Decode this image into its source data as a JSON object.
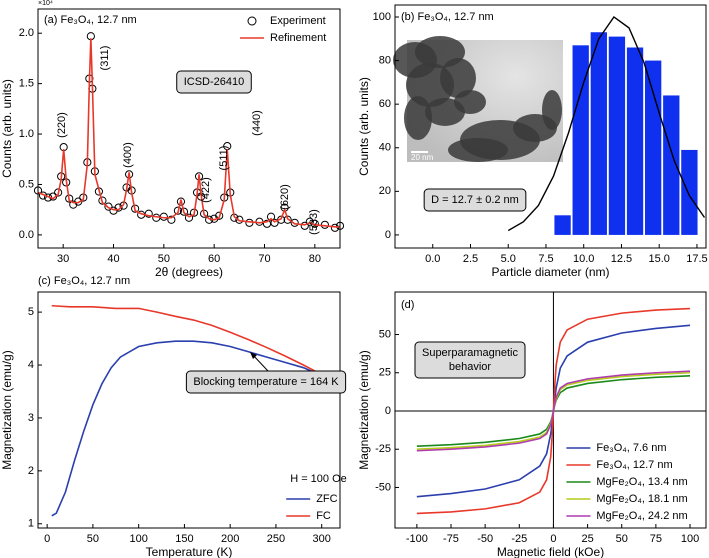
{
  "chart_data": [
    {
      "type": "scatter",
      "title": "(a) Fe₃O₄, 12.7 nm",
      "offset_label": "×10⁴",
      "x_label": "2θ (degrees)",
      "y_label": "Counts (arb. units)",
      "x": [
        25,
        26,
        27,
        28,
        29,
        29.6,
        30.1,
        30.6,
        31.2,
        32,
        33,
        34,
        34.8,
        35.2,
        35.5,
        35.8,
        36.3,
        37.1,
        37.8,
        39,
        40,
        41,
        42,
        42.6,
        43.1,
        43.6,
        44.3,
        45.5,
        47,
        48.5,
        50,
        51.5,
        52.8,
        53.4,
        54,
        55,
        56,
        56.6,
        57,
        57.4,
        58,
        59,
        60,
        61,
        62,
        62.6,
        63.2,
        64,
        65,
        67,
        69,
        70.5,
        71.3,
        72,
        73.3,
        74,
        74.6,
        76,
        78,
        79,
        80,
        82,
        84,
        85
      ],
      "series": [
        {
          "name": "Experiment",
          "type": "scatter",
          "color": "#000000",
          "values": [
            0.44,
            0.39,
            0.37,
            0.38,
            0.42,
            0.58,
            0.87,
            0.52,
            0.36,
            0.3,
            0.33,
            0.37,
            0.72,
            1.55,
            1.97,
            1.45,
            0.63,
            0.43,
            0.34,
            0.28,
            0.24,
            0.27,
            0.29,
            0.47,
            0.6,
            0.44,
            0.26,
            0.2,
            0.21,
            0.17,
            0.18,
            0.15,
            0.24,
            0.33,
            0.23,
            0.17,
            0.22,
            0.42,
            0.58,
            0.38,
            0.21,
            0.15,
            0.16,
            0.19,
            0.37,
            0.88,
            0.42,
            0.17,
            0.15,
            0.12,
            0.13,
            0.11,
            0.18,
            0.12,
            0.15,
            0.27,
            0.15,
            0.12,
            0.09,
            0.13,
            0.11,
            0.1,
            0.07,
            0.09
          ]
        },
        {
          "name": "Refinement",
          "type": "line",
          "color": "#e8382a",
          "values": [
            0.42,
            0.4,
            0.38,
            0.36,
            0.4,
            0.55,
            0.85,
            0.55,
            0.34,
            0.32,
            0.32,
            0.35,
            0.7,
            1.5,
            1.95,
            1.5,
            0.6,
            0.45,
            0.32,
            0.27,
            0.25,
            0.25,
            0.3,
            0.45,
            0.62,
            0.42,
            0.24,
            0.21,
            0.19,
            0.18,
            0.17,
            0.17,
            0.22,
            0.35,
            0.22,
            0.18,
            0.2,
            0.4,
            0.6,
            0.4,
            0.2,
            0.16,
            0.15,
            0.17,
            0.35,
            0.85,
            0.4,
            0.18,
            0.14,
            0.13,
            0.12,
            0.13,
            0.16,
            0.13,
            0.16,
            0.25,
            0.16,
            0.11,
            0.1,
            0.12,
            0.1,
            0.09,
            0.08,
            0.08
          ]
        }
      ],
      "xlim": [
        25,
        85
      ],
      "ylim": [
        -0.13,
        2.24
      ],
      "xticks": [
        30,
        40,
        50,
        60,
        70,
        80
      ],
      "yticks": [
        {
          "value": 0,
          "label": "0.0"
        },
        0.5,
        {
          "value": 1,
          "label": "1.0"
        },
        1.5,
        {
          "value": 2,
          "label": "2.0"
        }
      ],
      "legend": "upper right",
      "peak_labels": [
        "(220)",
        "(311)",
        "(400)",
        "(422)",
        "(511)",
        "(440)",
        "(620)",
        "(533)"
      ],
      "box_label": "ICSD-26410"
    },
    {
      "type": "histogram",
      "title": "(b) Fe₃O₄, 12.7 nm",
      "x_label": "Particle diameter (nm)",
      "y_label": "Counts (arb. units)",
      "bins": [
        8.0,
        9.2,
        10.4,
        11.6,
        12.8,
        14.0,
        15.2,
        16.4,
        17.6
      ],
      "values": [
        9,
        87,
        93,
        91,
        86,
        80,
        64,
        39
      ],
      "color": "#1030f0",
      "curve": {
        "x": [
          5,
          6,
          7,
          8,
          9,
          10,
          11,
          12,
          13,
          14,
          15,
          16,
          17,
          18
        ],
        "values": [
          2,
          6,
          13.5,
          27,
          47,
          70,
          90,
          100,
          95,
          79,
          56,
          34,
          18,
          8
        ],
        "color": "#000000"
      },
      "xlim": [
        -2.5,
        18.1
      ],
      "ylim": [
        -6,
        105.5
      ],
      "xticks": [
        {
          "value": 0,
          "label": "0.0"
        },
        2.5,
        {
          "value": 5,
          "label": "5.0"
        },
        7.5,
        {
          "value": 10,
          "label": "10.0"
        },
        12.5,
        {
          "value": 15,
          "label": "15.0"
        },
        17.5
      ],
      "yticks": [
        0,
        20,
        40,
        60,
        80,
        100
      ],
      "box_label": "D = 12.7 ± 0.2 nm",
      "scale_label": "20 nm"
    },
    {
      "type": "line",
      "title": "(c) Fe₃O₄, 12.7 nm",
      "x_label": "Temperature (K)",
      "y_label": "Magnetization (emu/g)",
      "series": [
        {
          "name": "ZFC",
          "color": "#2b3fae",
          "x": [
            5,
            10,
            20,
            30,
            40,
            50,
            60,
            70,
            80,
            100,
            120,
            140,
            160,
            180,
            200,
            220,
            240,
            260,
            280,
            300
          ],
          "values": [
            1.15,
            1.2,
            1.6,
            2.2,
            2.75,
            3.25,
            3.65,
            3.95,
            4.15,
            4.35,
            4.42,
            4.45,
            4.45,
            4.42,
            4.35,
            4.25,
            4.15,
            4.05,
            3.95,
            3.8
          ]
        },
        {
          "name": "FC",
          "color": "#e8382a",
          "x": [
            5,
            25,
            50,
            75,
            100,
            120,
            140,
            160,
            180,
            200,
            220,
            240,
            260,
            280,
            300
          ],
          "values": [
            5.12,
            5.1,
            5.1,
            5.07,
            5.07,
            5.0,
            4.92,
            4.85,
            4.75,
            4.62,
            4.48,
            4.33,
            4.17,
            4.0,
            3.82
          ]
        }
      ],
      "xlim": [
        -10,
        320
      ],
      "ylim": [
        0.92,
        5.38
      ],
      "xticks": [
        0,
        50,
        100,
        150,
        200,
        250,
        300
      ],
      "yticks": [
        1,
        2,
        3,
        4,
        5
      ],
      "legend": "lower right",
      "legend_title": "H = 100 Oe",
      "annotation": "Blocking temperature = 164 K"
    },
    {
      "type": "line",
      "title": "(d)",
      "x_label": "Magnetic field (kOe)",
      "y_label": "Magnetization (emu/g)",
      "x": [
        -100,
        -75,
        -50,
        -25,
        -10,
        -5,
        -2,
        -1,
        0,
        1,
        2,
        5,
        10,
        25,
        50,
        75,
        100
      ],
      "series": [
        {
          "name": "Fe₃O₄, 7.6 nm",
          "color": "#2b3fae",
          "values": [
            -56,
            -54,
            -51,
            -45,
            -36,
            -28,
            -15,
            -8,
            0,
            8,
            15,
            28,
            36,
            45,
            51,
            54,
            56
          ]
        },
        {
          "name": "Fe₃O₄, 12.7 nm",
          "color": "#e8382a",
          "values": [
            -67,
            -66,
            -64,
            -60,
            -53,
            -45,
            -30,
            -17,
            0,
            17,
            30,
            45,
            53,
            60,
            64,
            66,
            67
          ]
        },
        {
          "name": "MgFe₂O₄, 13.4 nm",
          "color": "#1a8a1a",
          "values": [
            -23,
            -22,
            -20.5,
            -18,
            -15,
            -12,
            -7,
            -4,
            0,
            4,
            7,
            12,
            15,
            18,
            20.5,
            22,
            23
          ]
        },
        {
          "name": "MgFe₂O₄, 18.1 nm",
          "color": "#b5cc1a",
          "values": [
            -25,
            -24,
            -22.5,
            -20,
            -17,
            -14,
            -8,
            -4.5,
            0,
            4.5,
            8,
            14,
            17,
            20,
            22.5,
            24,
            25
          ]
        },
        {
          "name": "MgFe₂O₄, 24.2 nm",
          "color": "#b03cb0",
          "values": [
            -26,
            -25,
            -23.5,
            -21,
            -18,
            -15,
            -9,
            -5,
            0,
            5,
            9,
            15,
            18,
            21,
            23.5,
            25,
            26
          ]
        }
      ],
      "xlim": [
        -116,
        111.7
      ],
      "ylim": [
        -76.5,
        77.8
      ],
      "xticks": [
        -100,
        -75,
        -50,
        -25,
        0,
        25,
        50,
        75,
        100
      ],
      "yticks": [
        -50,
        -25,
        0,
        25,
        50
      ],
      "legend": "lower right",
      "zero_lines": true,
      "box_lines": [
        "Superparamagnetic",
        "behavior"
      ]
    }
  ]
}
